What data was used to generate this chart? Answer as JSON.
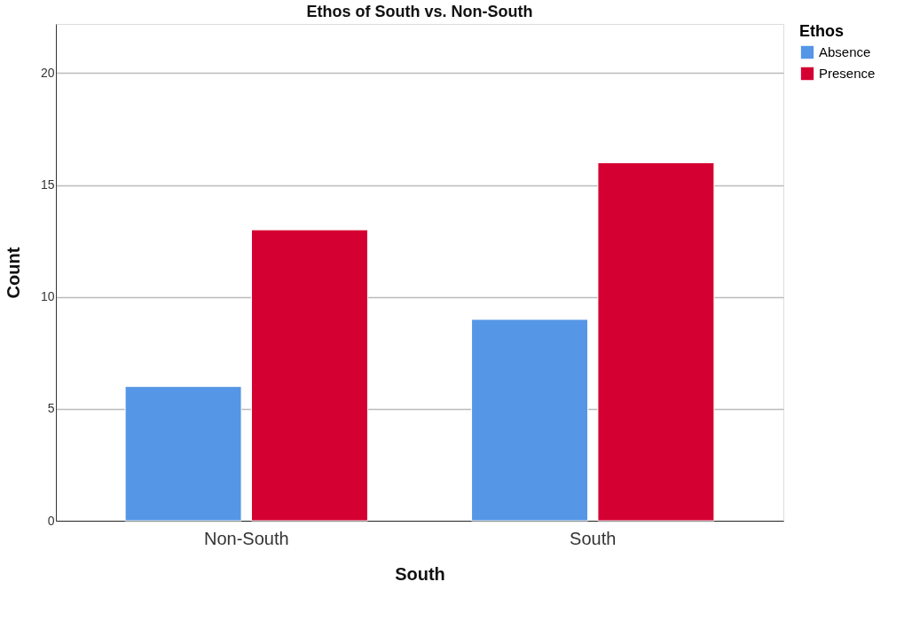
{
  "chart_data": {
    "type": "bar",
    "title": "Ethos of South vs. Non-South",
    "xlabel": "South",
    "ylabel": "Count",
    "legend_title": "Ethos",
    "categories": [
      "Non-South",
      "South"
    ],
    "series": [
      {
        "name": "Absence",
        "color": "#5596e6",
        "values": [
          6,
          9
        ]
      },
      {
        "name": "Presence",
        "color": "#d50032",
        "values": [
          13,
          16
        ]
      }
    ],
    "ylim": [
      0,
      22.2
    ],
    "yticks": [
      0,
      5,
      10,
      15,
      20
    ],
    "grid": "y",
    "legend": "top right"
  }
}
